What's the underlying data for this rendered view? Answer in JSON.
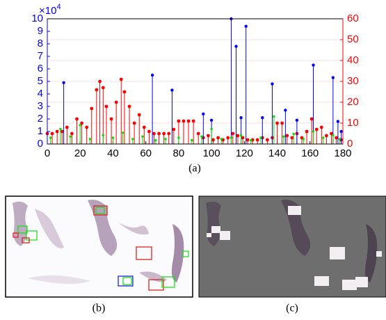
{
  "chart_data": {
    "type": "stem",
    "xlim": [
      0,
      180
    ],
    "xticks": [
      0,
      20,
      40,
      60,
      80,
      100,
      120,
      140,
      160,
      180
    ],
    "ylim": [
      0,
      10
    ],
    "yticks": [
      0,
      1,
      2,
      3,
      4,
      5,
      6,
      7,
      8,
      9,
      10
    ],
    "y_multiplier": {
      "base": "×10",
      "exponent": "4"
    },
    "y2lim": [
      0,
      60
    ],
    "y2ticks": [
      0,
      10,
      20,
      30,
      40,
      50,
      60
    ],
    "grid": true,
    "y_color": "#0000ff",
    "y2_color": "#ff0000",
    "series": [
      {
        "color": "#ff0000",
        "axis": "y2",
        "x": [
          0,
          3,
          6,
          9,
          12,
          15,
          18,
          21,
          24,
          27,
          30,
          32,
          34,
          36,
          39,
          42,
          45,
          47,
          50,
          53,
          56,
          59,
          62,
          65,
          68,
          71,
          74,
          77,
          80,
          83,
          86,
          89,
          92,
          95,
          98,
          101,
          104,
          107,
          110,
          113,
          116,
          119,
          122,
          125,
          128,
          131,
          134,
          137,
          140,
          143,
          146,
          149,
          152,
          155,
          158,
          161,
          164,
          167,
          170,
          173,
          176,
          179
        ],
        "values": [
          5,
          5,
          6,
          6,
          8,
          5,
          12,
          10,
          8,
          17,
          26,
          30,
          27,
          18,
          12,
          20,
          31,
          25,
          18,
          10,
          14,
          8,
          6,
          5,
          5,
          5,
          5,
          7,
          11,
          11,
          11,
          11,
          5,
          3,
          4,
          2,
          3,
          2,
          3,
          5,
          4,
          3,
          2,
          2,
          2,
          3,
          2,
          3,
          10,
          10,
          4,
          3,
          5,
          3,
          6,
          12,
          7,
          8,
          4,
          5,
          3,
          2
        ]
      },
      {
        "color": "#0000ff",
        "x": [
          10,
          64,
          76,
          95,
          100,
          112,
          115,
          118,
          121,
          131,
          137,
          145,
          152,
          162,
          174,
          177,
          179
        ],
        "values": [
          4.9,
          5.5,
          4.3,
          2.4,
          1.9,
          10,
          7.8,
          2.1,
          9.4,
          2.1,
          4.8,
          2.7,
          1.9,
          6.3,
          5.3,
          1.8,
          1.0
        ]
      },
      {
        "color": "#00dd00",
        "x": [
          2,
          8,
          14,
          20,
          26,
          34,
          40,
          46,
          52,
          58,
          66,
          72,
          80,
          88,
          94,
          100,
          106,
          112,
          118,
          124,
          130,
          138,
          144,
          150,
          156,
          162,
          168,
          174,
          178
        ],
        "values": [
          0.5,
          1.2,
          0.6,
          1.5,
          0.4,
          0.7,
          0.5,
          0.9,
          0.4,
          0.6,
          0.3,
          0.4,
          0.5,
          0.3,
          0.6,
          1.2,
          0.4,
          0.5,
          0.7,
          0.3,
          0.5,
          2.2,
          0.6,
          0.8,
          0.4,
          1.0,
          0.5,
          0.7,
          0.4
        ]
      }
    ]
  },
  "captions": [
    "(a)",
    "(b)",
    "(c)"
  ]
}
